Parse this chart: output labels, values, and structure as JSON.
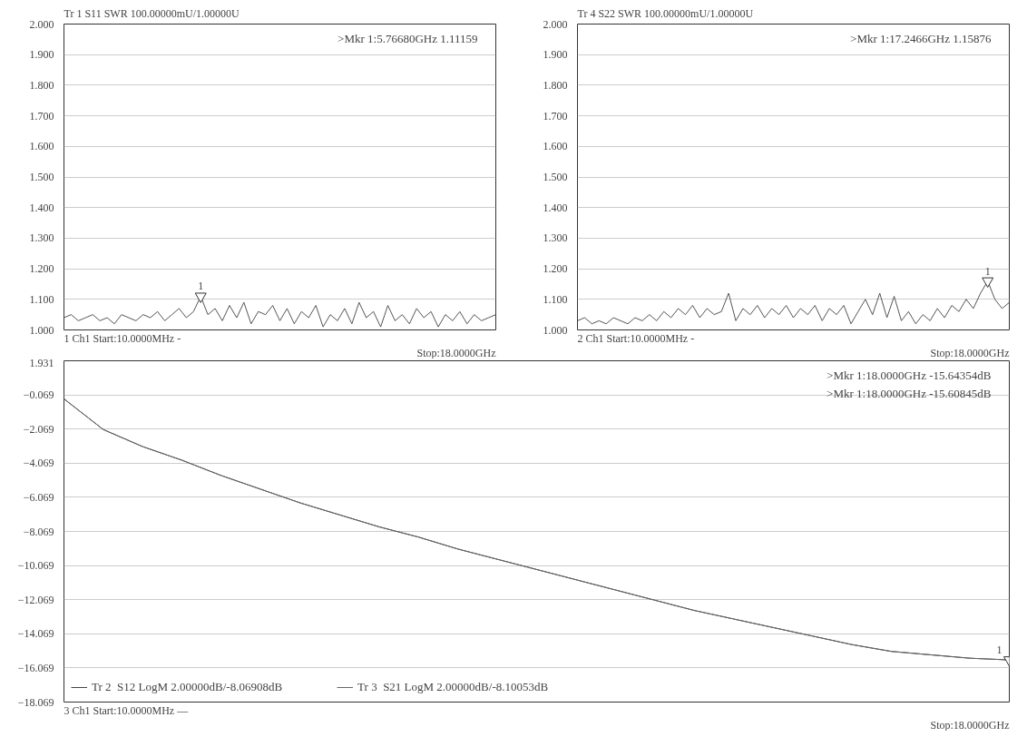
{
  "chart_data": [
    {
      "type": "line",
      "title": "Tr 1  S11 SWR 100.00000mU/1.00000U",
      "categories": [
        null,
        null,
        null,
        null,
        null,
        null,
        null,
        null,
        null,
        null,
        null,
        null,
        null,
        null,
        null,
        null,
        null,
        null,
        null,
        null,
        null,
        null,
        null,
        null,
        null,
        null,
        null,
        null,
        null,
        null,
        null,
        null,
        null,
        null,
        null,
        null,
        null,
        null,
        null,
        null,
        null,
        null,
        null,
        null,
        null,
        null,
        null,
        null,
        null,
        null,
        null,
        null,
        null,
        null,
        null,
        null,
        null,
        null,
        null,
        null,
        null
      ],
      "series": [
        {
          "color": "#555555",
          "values": [
            1.04,
            1.05,
            1.03,
            1.04,
            1.05,
            1.03,
            1.04,
            1.02,
            1.05,
            1.04,
            1.03,
            1.05,
            1.04,
            1.06,
            1.03,
            1.05,
            1.07,
            1.04,
            1.06,
            1.11,
            1.05,
            1.07,
            1.03,
            1.08,
            1.04,
            1.09,
            1.02,
            1.06,
            1.05,
            1.08,
            1.03,
            1.07,
            1.02,
            1.06,
            1.04,
            1.08,
            1.01,
            1.05,
            1.03,
            1.07,
            1.02,
            1.09,
            1.04,
            1.06,
            1.01,
            1.08,
            1.03,
            1.05,
            1.02,
            1.07,
            1.04,
            1.06,
            1.01,
            1.05,
            1.03,
            1.06,
            1.02,
            1.05,
            1.03,
            1.04,
            1.05
          ]
        }
      ],
      "ylim": [
        1.0,
        2.0
      ],
      "yticks": [
        {
          "value": 1.0,
          "label": "1.000"
        },
        {
          "value": 1.1,
          "label": "1.100"
        },
        {
          "value": 1.2,
          "label": "1.200"
        },
        {
          "value": 1.3,
          "label": "1.300"
        },
        {
          "value": 1.4,
          "label": "1.400"
        },
        {
          "value": 1.5,
          "label": "1.500"
        },
        {
          "value": 1.6,
          "label": "1.600"
        },
        {
          "value": 1.7,
          "label": "1.700"
        },
        {
          "value": 1.8,
          "label": "1.800"
        },
        {
          "value": 1.9,
          "label": "1.900"
        },
        {
          "value": 2.0,
          "label": "2.000"
        }
      ],
      "grid": "y",
      "tick_labels": "y",
      "legend": false,
      "marker": "none",
      "line_style": "solid",
      "annotations": [
        {
          "text": "1",
          "y": 1.11
        },
        ">Mkr 1:5.76680GHz 1.11159",
        "1  Ch1  Start:10.0000MHz  -",
        "Stop:18.0000GHz"
      ]
    },
    {
      "type": "line",
      "title": "Tr 4  S22 SWR 100.00000mU/1.00000U",
      "categories": [
        null,
        null,
        null,
        null,
        null,
        null,
        null,
        null,
        null,
        null,
        null,
        null,
        null,
        null,
        null,
        null,
        null,
        null,
        null,
        null,
        null,
        null,
        null,
        null,
        null,
        null,
        null,
        null,
        null,
        null,
        null,
        null,
        null,
        null,
        null,
        null,
        null,
        null,
        null,
        null,
        null,
        null,
        null,
        null,
        null,
        null,
        null,
        null,
        null,
        null,
        null,
        null,
        null,
        null,
        null,
        null,
        null,
        null,
        null,
        null,
        null
      ],
      "series": [
        {
          "color": "#555555",
          "values": [
            1.03,
            1.04,
            1.02,
            1.03,
            1.02,
            1.04,
            1.03,
            1.02,
            1.04,
            1.03,
            1.05,
            1.03,
            1.06,
            1.04,
            1.07,
            1.05,
            1.08,
            1.04,
            1.07,
            1.05,
            1.06,
            1.12,
            1.03,
            1.07,
            1.05,
            1.08,
            1.04,
            1.07,
            1.05,
            1.08,
            1.04,
            1.07,
            1.05,
            1.08,
            1.03,
            1.07,
            1.05,
            1.08,
            1.02,
            1.06,
            1.1,
            1.05,
            1.12,
            1.04,
            1.11,
            1.03,
            1.06,
            1.02,
            1.05,
            1.03,
            1.07,
            1.04,
            1.08,
            1.06,
            1.1,
            1.07,
            1.12,
            1.16,
            1.1,
            1.07,
            1.09
          ]
        }
      ],
      "ylim": [
        1.0,
        2.0
      ],
      "yticks": [
        {
          "value": 1.0,
          "label": "1.000"
        },
        {
          "value": 1.1,
          "label": "1.100"
        },
        {
          "value": 1.2,
          "label": "1.200"
        },
        {
          "value": 1.3,
          "label": "1.300"
        },
        {
          "value": 1.4,
          "label": "1.400"
        },
        {
          "value": 1.5,
          "label": "1.500"
        },
        {
          "value": 1.6,
          "label": "1.600"
        },
        {
          "value": 1.7,
          "label": "1.700"
        },
        {
          "value": 1.8,
          "label": "1.800"
        },
        {
          "value": 1.9,
          "label": "1.900"
        },
        {
          "value": 2.0,
          "label": "2.000"
        }
      ],
      "grid": "y",
      "tick_labels": "y",
      "legend": false,
      "marker": "none",
      "line_style": "solid",
      "annotations": [
        {
          "text": "1",
          "y": 1.16
        },
        ">Mkr 1:17.2466GHz 1.15876",
        "2  Ch1  Start:10.0000MHz  -",
        "Stop:18.0000GHz"
      ]
    },
    {
      "type": "line",
      "categories": [
        null,
        null,
        null,
        null,
        null,
        null,
        null,
        null,
        null,
        null,
        null,
        null,
        null,
        null,
        null,
        null,
        null,
        null,
        null,
        null,
        null,
        null,
        null,
        null,
        null
      ],
      "series": [
        {
          "name": "Tr 2  S12 LogM 2.00000dB/-8.06908dB",
          "color": "#444444",
          "values": [
            -0.3,
            -2.1,
            -3.1,
            -3.9,
            -4.8,
            -5.6,
            -6.4,
            -7.1,
            -7.8,
            -8.4,
            -9.1,
            -9.7,
            -10.3,
            -10.9,
            -11.5,
            -12.1,
            -12.7,
            -13.2,
            -13.7,
            -14.2,
            -14.7,
            -15.1,
            -15.3,
            -15.5,
            -15.6
          ]
        },
        {
          "name": "Tr 3  S21 LogM 2.00000dB/-8.10053dB",
          "color": "#666666",
          "values": [
            -0.3,
            -2.1,
            -3.1,
            -3.9,
            -4.8,
            -5.6,
            -6.4,
            -7.1,
            -7.8,
            -8.4,
            -9.1,
            -9.7,
            -10.3,
            -10.9,
            -11.5,
            -12.1,
            -12.7,
            -13.2,
            -13.7,
            -14.2,
            -14.7,
            -15.1,
            -15.3,
            -15.5,
            -15.6
          ]
        }
      ],
      "ylim": [
        -18.069,
        1.931
      ],
      "yticks": [
        1.931,
        -0.069,
        -2.069,
        -4.069,
        -6.069,
        -8.069,
        -10.069,
        -12.069,
        -14.069,
        -16.069,
        -18.069
      ],
      "grid": "y",
      "tick_labels": "y",
      "legend": "bottom left",
      "marker": "none",
      "line_style": "solid",
      "annotations": [
        {
          "text": "1",
          "y": -15.6
        },
        ">Mkr 1:18.0000GHz -15.64354dB",
        ">Mkr 1:18.0000GHz -15.60845dB",
        "3  Ch1  Start:10.0000MHz  —",
        "Stop:18.0000GHz"
      ]
    }
  ]
}
